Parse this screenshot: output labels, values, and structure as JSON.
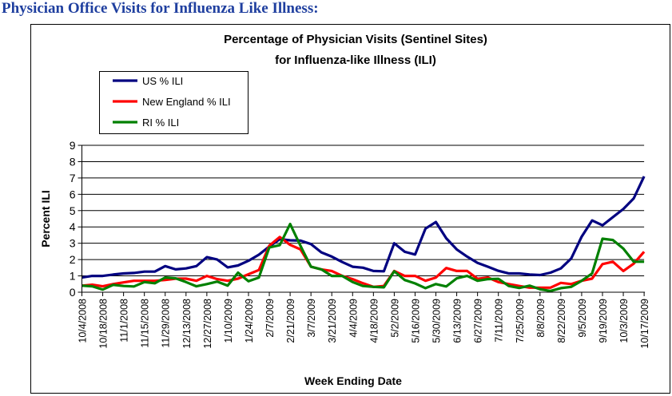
{
  "heading": "Physician Office Visits for Influenza Like Illness:",
  "chart_data": {
    "type": "line",
    "title": [
      "Percentage of Physician Visits (Sentinel Sites)",
      "for Influenza-like Illness (ILI)"
    ],
    "xlabel": "Week Ending Date",
    "ylabel": "Percent ILI",
    "ylim": [
      0,
      9
    ],
    "yticks": [
      "0",
      "1",
      "2",
      "3",
      "4",
      "5",
      "6",
      "7",
      "8",
      "9"
    ],
    "grid": true,
    "legend_position": "top-left",
    "x_tick_labels": [
      "10/4/2008",
      "10/18/2008",
      "11/1/2008",
      "11/15/2008",
      "11/29/2008",
      "12/13/2008",
      "12/27/2008",
      "1/10/2009",
      "1/24/2009",
      "2/7/2009",
      "2/21/2009",
      "3/7/2009",
      "3/21/2009",
      "4/4/2009",
      "4/18/2009",
      "5/2/2009",
      "5/16/2009",
      "5/30/2009",
      "6/13/2009",
      "6/27/2009",
      "7/11/2009",
      "7/25/2009",
      "8/8/2009",
      "8/22/2009",
      "9/5/2009",
      "9/19/2009",
      "10/3/2009",
      "10/17/2009"
    ],
    "series": [
      {
        "name": "US % ILI",
        "color": "#000080",
        "values": [
          0.9,
          1.0,
          1.0,
          1.08,
          1.15,
          1.18,
          1.26,
          1.26,
          1.6,
          1.4,
          1.46,
          1.6,
          2.15,
          2.0,
          1.52,
          1.64,
          1.93,
          2.3,
          2.8,
          3.25,
          3.18,
          3.16,
          2.95,
          2.44,
          2.18,
          1.85,
          1.56,
          1.5,
          1.3,
          1.28,
          3.0,
          2.48,
          2.31,
          3.9,
          4.3,
          3.3,
          2.62,
          2.18,
          1.8,
          1.56,
          1.31,
          1.15,
          1.15,
          1.08,
          1.05,
          1.2,
          1.46,
          2.07,
          3.4,
          4.4,
          4.1,
          4.6,
          5.1,
          5.75,
          7.1
        ]
      },
      {
        "name": "New England % ILI",
        "color": "#ff0000",
        "values": [
          0.4,
          0.46,
          0.36,
          0.5,
          0.6,
          0.7,
          0.7,
          0.7,
          0.75,
          0.83,
          0.83,
          0.7,
          1.0,
          0.8,
          0.7,
          0.83,
          1.1,
          1.36,
          2.85,
          3.38,
          2.9,
          2.62,
          1.56,
          1.4,
          1.3,
          1.0,
          0.8,
          0.55,
          0.33,
          0.38,
          1.3,
          1.0,
          1.0,
          0.7,
          0.9,
          1.48,
          1.3,
          1.3,
          0.82,
          0.9,
          0.62,
          0.5,
          0.38,
          0.28,
          0.28,
          0.28,
          0.57,
          0.5,
          0.7,
          0.83,
          1.72,
          1.87,
          1.3,
          1.75,
          2.48
        ]
      },
      {
        "name": "RI % ILI",
        "color": "#008000",
        "values": [
          0.4,
          0.36,
          0.16,
          0.45,
          0.38,
          0.35,
          0.62,
          0.55,
          0.9,
          0.85,
          0.62,
          0.36,
          0.5,
          0.65,
          0.4,
          1.2,
          0.67,
          0.9,
          2.74,
          2.88,
          4.18,
          2.84,
          1.56,
          1.4,
          1.0,
          1.0,
          0.62,
          0.38,
          0.33,
          0.3,
          1.28,
          0.75,
          0.54,
          0.25,
          0.5,
          0.35,
          0.85,
          1.0,
          0.7,
          0.8,
          0.82,
          0.38,
          0.26,
          0.4,
          0.18,
          0.08,
          0.25,
          0.33,
          0.7,
          1.15,
          3.28,
          3.2,
          2.67,
          1.87,
          1.87
        ]
      }
    ]
  }
}
